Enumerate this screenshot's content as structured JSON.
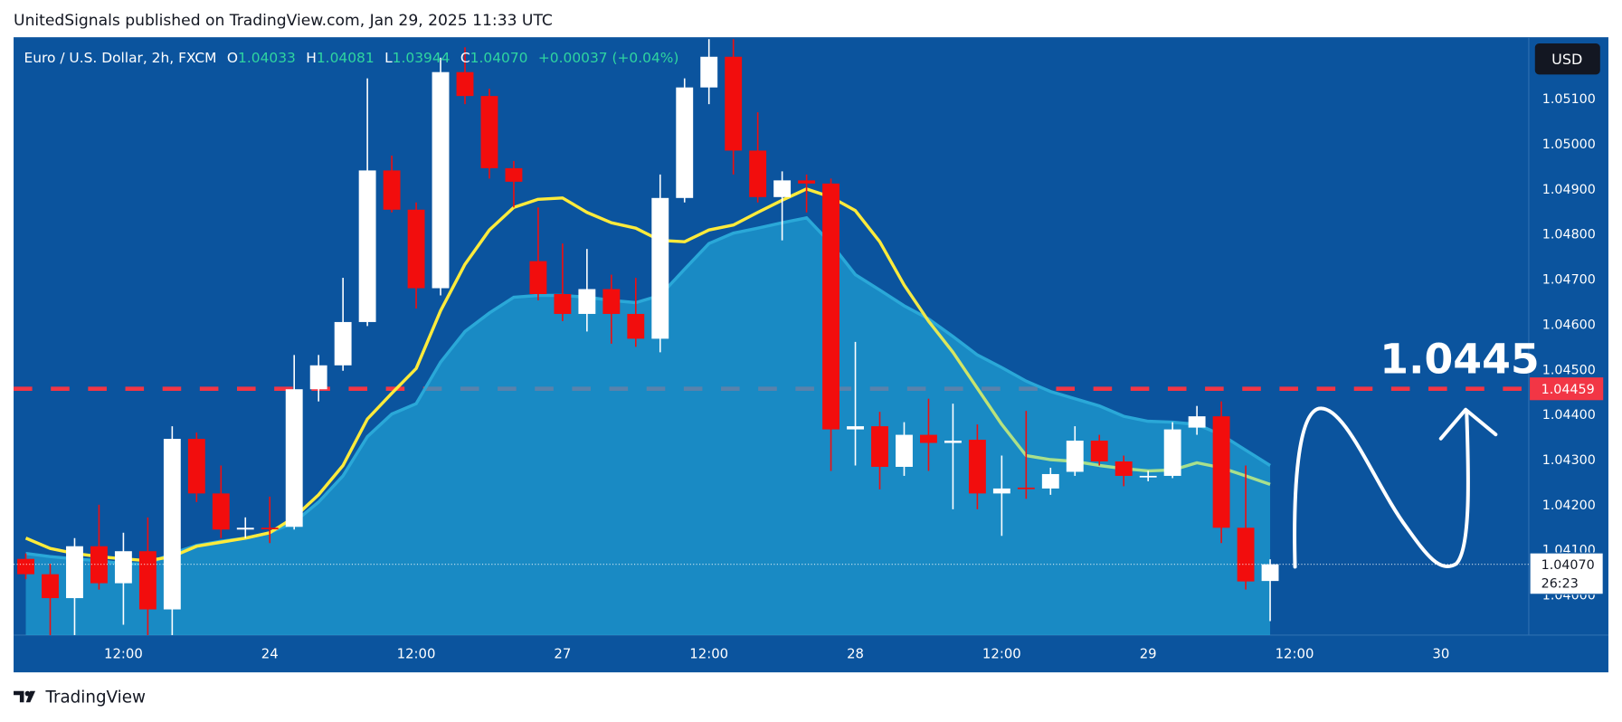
{
  "title": "UnitedSignals published on TradingView.com, Jan 29, 2025 11:33 UTC",
  "brand": "TradingView",
  "chart_data": {
    "type": "candlestick",
    "symbol": "Euro / U.S. Dollar, 2h, FXCM",
    "ohlc_keys": [
      "O",
      "H",
      "L",
      "C"
    ],
    "change": "+0.00037 (+0.04%)",
    "currency": "USD",
    "countdown": "26:23",
    "last_label": "1.04070",
    "annotation": "1.0445",
    "categories": [
      null,
      null,
      null,
      null,
      null,
      null,
      null,
      null,
      null,
      null,
      null,
      null,
      null,
      null,
      null,
      null,
      null,
      null,
      null,
      null,
      null,
      null,
      null,
      null,
      null,
      null,
      null,
      null,
      null,
      null,
      null,
      null,
      null,
      null,
      null,
      null,
      null,
      null,
      null,
      null,
      null,
      null,
      null,
      null,
      null,
      null,
      null,
      null,
      null,
      null,
      null,
      null
    ],
    "xlim": [
      -0.5,
      61.6
    ],
    "xticks": [
      {
        "value": 4,
        "label": "12:00"
      },
      {
        "value": 10,
        "label": "24"
      },
      {
        "value": 16,
        "label": "12:00"
      },
      {
        "value": 22,
        "label": "27"
      },
      {
        "value": 28,
        "label": "12:00"
      },
      {
        "value": 34,
        "label": "28"
      },
      {
        "value": 40,
        "label": "12:00"
      },
      {
        "value": 46,
        "label": "29"
      },
      {
        "value": 52,
        "label": "12:00"
      },
      {
        "value": 58,
        "label": "30"
      }
    ],
    "ylim": [
      1.03913,
      1.05236
    ],
    "yticks": [
      {
        "value": 1.04,
        "label": "1.04000"
      },
      {
        "value": 1.041,
        "label": "1.04100"
      },
      {
        "value": 1.042,
        "label": "1.04200"
      },
      {
        "value": 1.043,
        "label": "1.04300"
      },
      {
        "value": 1.044,
        "label": "1.04400"
      },
      {
        "value": 1.045,
        "label": "1.04500"
      },
      {
        "value": 1.046,
        "label": "1.04600"
      },
      {
        "value": 1.047,
        "label": "1.04700"
      },
      {
        "value": 1.048,
        "label": "1.04800"
      },
      {
        "value": 1.049,
        "label": "1.04900"
      },
      {
        "value": 1.05,
        "label": "1.05000"
      },
      {
        "value": 1.051,
        "label": "1.05100"
      }
    ],
    "grid": false,
    "hlines": [
      {
        "value": 1.04459,
        "color": "#f23645"
      }
    ],
    "series": [
      {
        "type": "candlestick",
        "up_color": "#ffffff",
        "down_color": "#f20d0d",
        "open": [
          1.04082,
          1.04048,
          1.03995,
          1.0411,
          1.04028,
          1.04099,
          1.0397,
          1.04348,
          1.04227,
          1.04147,
          1.04151,
          1.04153,
          1.04458,
          1.04511,
          1.04607,
          1.04943,
          1.04856,
          1.04682,
          1.05161,
          1.05108,
          1.04948,
          1.04742,
          1.04669,
          1.04625,
          1.0468,
          1.04625,
          1.0457,
          1.04882,
          1.05127,
          1.05195,
          1.04987,
          1.04884,
          1.04921,
          1.04914,
          1.04369,
          1.04376,
          1.04286,
          1.04357,
          1.04339,
          1.04346,
          1.04227,
          1.0424,
          1.04238,
          1.04275,
          1.04344,
          1.04298,
          1.04266,
          1.04266,
          1.04373,
          1.04398,
          1.04151,
          1.04033
        ],
        "high": [
          1.04094,
          1.04071,
          1.04128,
          1.04202,
          1.0414,
          1.04174,
          1.04376,
          1.04362,
          1.04289,
          1.04174,
          1.0422,
          1.04534,
          1.04534,
          1.04705,
          1.05147,
          1.04976,
          1.04872,
          1.05193,
          1.05216,
          1.05124,
          1.04964,
          1.04861,
          1.04781,
          1.04769,
          1.04712,
          1.04705,
          1.04934,
          1.05147,
          1.05234,
          1.05234,
          1.05072,
          1.04941,
          1.04934,
          1.04925,
          1.04563,
          1.04408,
          1.04385,
          1.04437,
          1.04426,
          1.0438,
          1.04311,
          1.0441,
          1.04284,
          1.04376,
          1.04357,
          1.04311,
          1.04277,
          1.04385,
          1.04421,
          1.04431,
          1.04289,
          1.04081
        ],
        "low": [
          1.04037,
          1.03913,
          1.03913,
          1.04014,
          1.03936,
          1.03913,
          1.03913,
          1.04208,
          1.04128,
          1.04128,
          1.04117,
          1.04147,
          1.04431,
          1.04499,
          1.04598,
          1.0485,
          1.04637,
          1.04666,
          1.0509,
          1.04925,
          1.04861,
          1.04655,
          1.04609,
          1.04586,
          1.04559,
          1.04552,
          1.0454,
          1.04872,
          1.0509,
          1.04934,
          1.04872,
          1.04788,
          1.0485,
          1.04277,
          1.04289,
          1.04236,
          1.04266,
          1.04277,
          1.04192,
          1.04192,
          1.04133,
          1.04215,
          1.04224,
          1.04266,
          1.04289,
          1.04243,
          1.04254,
          1.04261,
          1.04357,
          1.04117,
          1.04014,
          1.03944
        ],
        "close": [
          1.04048,
          1.03995,
          1.0411,
          1.04028,
          1.04099,
          1.0397,
          1.04348,
          1.04227,
          1.04147,
          1.04151,
          1.04149,
          1.04458,
          1.04511,
          1.04607,
          1.04943,
          1.04856,
          1.04682,
          1.05161,
          1.05108,
          1.04948,
          1.04918,
          1.04669,
          1.04625,
          1.0468,
          1.04625,
          1.0457,
          1.04882,
          1.05127,
          1.05195,
          1.04987,
          1.04884,
          1.04921,
          1.04914,
          1.04369,
          1.04376,
          1.04286,
          1.04357,
          1.04339,
          1.04344,
          1.04227,
          1.04238,
          1.04238,
          1.0427,
          1.04344,
          1.04298,
          1.04266,
          1.04266,
          1.04369,
          1.04398,
          1.04151,
          1.04032,
          1.0407
        ]
      },
      {
        "type": "area",
        "color": "#2aa8d8",
        "fill": "#1ea0d2",
        "values": [
          1.04094,
          1.04087,
          1.04082,
          1.04078,
          1.04071,
          1.04071,
          1.04094,
          1.04112,
          1.04121,
          1.04128,
          1.0414,
          1.04163,
          1.04208,
          1.04266,
          1.04353,
          1.04403,
          1.04426,
          1.04518,
          1.04586,
          1.04627,
          1.04662,
          1.04666,
          1.04666,
          1.04662,
          1.04655,
          1.0465,
          1.04666,
          1.04724,
          1.04781,
          1.04804,
          1.04815,
          1.04827,
          1.04838,
          1.04781,
          1.04712,
          1.04678,
          1.04643,
          1.04614,
          1.04575,
          1.04534,
          1.04506,
          1.04476,
          1.04453,
          1.04437,
          1.04421,
          1.04398,
          1.04387,
          1.04385,
          1.0438,
          1.04357,
          1.04323,
          1.04289
        ]
      },
      {
        "type": "line",
        "color": [
          "#ffeb3b",
          "#a8e08c"
        ],
        "values": [
          1.04128,
          1.04105,
          1.04094,
          1.04087,
          1.04082,
          1.04078,
          1.04087,
          1.0411,
          1.04119,
          1.04128,
          1.0414,
          1.04174,
          1.04224,
          1.04289,
          1.04392,
          1.04449,
          1.04504,
          1.04632,
          1.04735,
          1.04811,
          1.04861,
          1.04879,
          1.04882,
          1.0485,
          1.04827,
          1.04815,
          1.04788,
          1.04785,
          1.04811,
          1.04822,
          1.0485,
          1.04877,
          1.04902,
          1.04884,
          1.04854,
          1.04785,
          1.04689,
          1.04609,
          1.0454,
          1.0446,
          1.0438,
          1.04311,
          1.04302,
          1.04298,
          1.04289,
          1.04282,
          1.04277,
          1.04279,
          1.04295,
          1.04284,
          1.04266,
          1.04247
        ]
      }
    ]
  }
}
